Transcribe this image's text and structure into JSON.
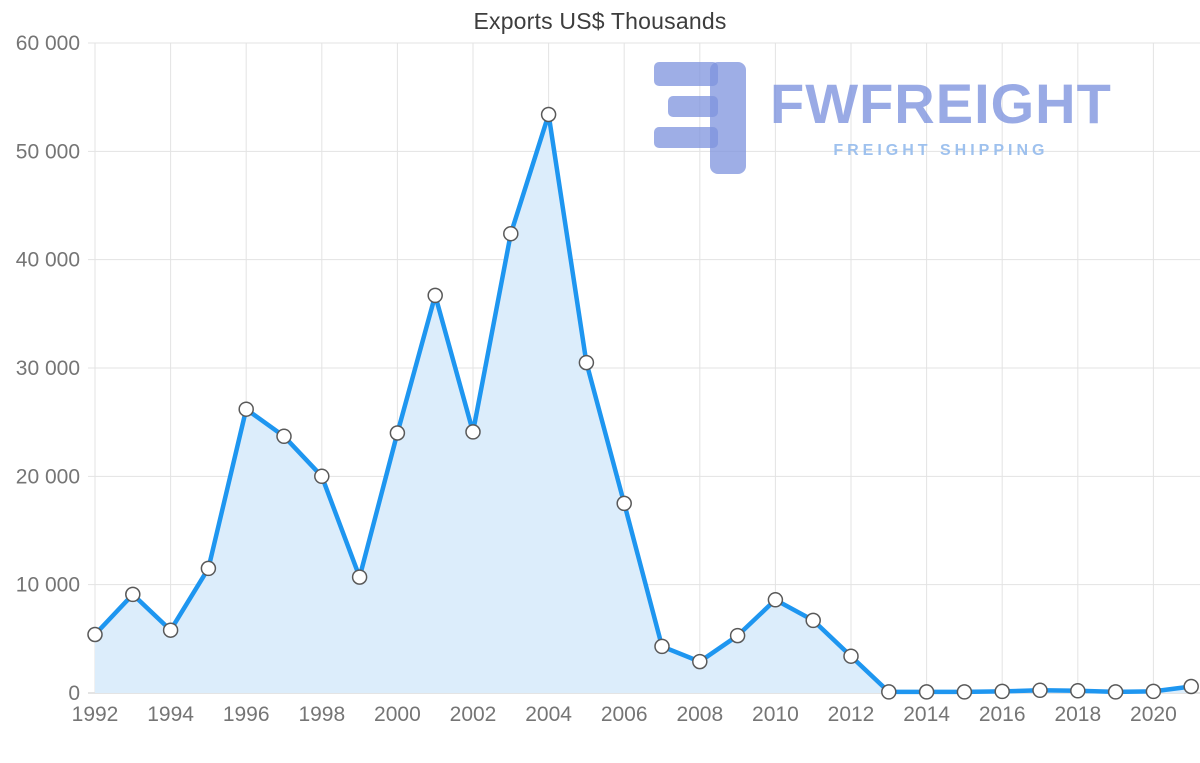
{
  "logo": {
    "name": "FWFREIGHT",
    "tagline": "FREIGHT SHIPPING"
  },
  "chart_data": {
    "type": "area",
    "title": "Exports US$ Thousands",
    "xlabel": "",
    "ylabel": "",
    "x": [
      1992,
      1993,
      1994,
      1995,
      1996,
      1997,
      1998,
      1999,
      2000,
      2001,
      2002,
      2003,
      2004,
      2005,
      2006,
      2007,
      2008,
      2009,
      2010,
      2011,
      2012,
      2013,
      2014,
      2015,
      2016,
      2017,
      2018,
      2019,
      2020,
      2021
    ],
    "values": [
      5400,
      9100,
      5800,
      11500,
      26200,
      23700,
      20000,
      10700,
      24000,
      36700,
      24100,
      42400,
      53400,
      30500,
      17500,
      4300,
      2900,
      5300,
      8600,
      6700,
      3400,
      100,
      100,
      100,
      150,
      250,
      200,
      100,
      150,
      600
    ],
    "ylim": [
      0,
      60000
    ],
    "grid": true,
    "legend": "none",
    "x_ticks": [
      "1992",
      "1994",
      "1996",
      "1998",
      "2000",
      "2002",
      "2004",
      "2006",
      "2008",
      "2010",
      "2012",
      "2014",
      "2016",
      "2018",
      "2020"
    ],
    "y_ticks": [
      {
        "value": 0,
        "label": "0"
      },
      {
        "value": 10000,
        "label": "10 000"
      },
      {
        "value": 20000,
        "label": "20 000"
      },
      {
        "value": 30000,
        "label": "30 000"
      },
      {
        "value": 40000,
        "label": "40 000"
      },
      {
        "value": 50000,
        "label": "50 000"
      },
      {
        "value": 60000,
        "label": "60 000"
      }
    ],
    "colors": {
      "line": "#1e96f0",
      "fill": "#dcedfb",
      "marker_fill": "#ffffff",
      "marker_stroke": "#595959",
      "grid": "#e3e3e3",
      "axis_line": "#c9c9c9",
      "axis_text": "#757575",
      "title_text": "#3d3d3d"
    }
  }
}
